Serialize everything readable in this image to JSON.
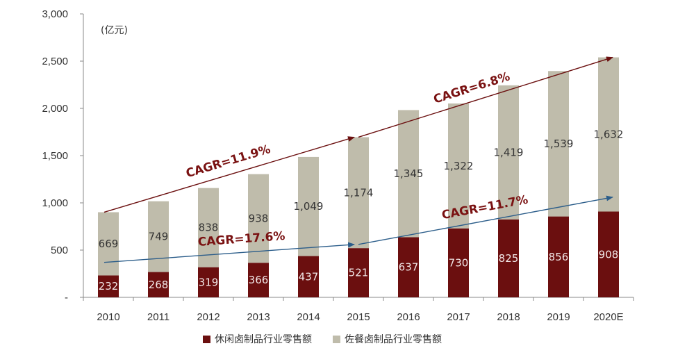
{
  "chart_data": {
    "type": "bar",
    "stacked": true,
    "unit_label": "(亿元)",
    "categories": [
      "2010",
      "2011",
      "2012",
      "2013",
      "2014",
      "2015",
      "2016",
      "2017",
      "2018",
      "2019",
      "2020E"
    ],
    "series": [
      {
        "name": "休闲卤制品行业零售额",
        "color": "#6b0f0f",
        "values": [
          232,
          268,
          319,
          366,
          437,
          521,
          637,
          730,
          825,
          856,
          908
        ]
      },
      {
        "name": "佐餐卤制品行业零售额",
        "color": "#bfbcab",
        "values": [
          669,
          749,
          838,
          938,
          1049,
          1174,
          1345,
          1322,
          1419,
          1539,
          1632
        ]
      }
    ],
    "value_labels": {
      "series0": [
        "232",
        "268",
        "319",
        "366",
        "437",
        "521",
        "637",
        "730",
        "825",
        "856",
        "908"
      ],
      "series1": [
        "669",
        "749",
        "838",
        "938",
        "1,049",
        "1,174",
        "1,345",
        "1,322",
        "1,419",
        "1,539",
        "1,632"
      ]
    },
    "y_ticks": [
      {
        "value": 0,
        "label": "-"
      },
      {
        "value": 500,
        "label": "500"
      },
      {
        "value": 1000,
        "label": "1,000"
      },
      {
        "value": 1500,
        "label": "1,500"
      },
      {
        "value": 2000,
        "label": "2,000"
      },
      {
        "value": 2500,
        "label": "2,500"
      },
      {
        "value": 3000,
        "label": "3,000"
      }
    ],
    "ylim": [
      0,
      3000
    ],
    "annotations": [
      {
        "text": "CAGR=11.9%",
        "color": "#7a1212",
        "from_category": "2010",
        "to_category": "2015",
        "from_value": 901,
        "to_value": 1695
      },
      {
        "text": "CAGR=6.8%",
        "color": "#7a1212",
        "from_category": "2015",
        "to_category": "2020E",
        "from_value": 1695,
        "to_value": 2540
      },
      {
        "text": "CAGR=17.6%",
        "color": "#7a1212",
        "from_category": "2010",
        "to_category": "2015",
        "from_value": 370,
        "to_value": 560
      },
      {
        "text": "CAGR=11.7%",
        "color": "#7a1212",
        "from_category": "2015",
        "to_category": "2020E",
        "from_value": 560,
        "to_value": 1060
      }
    ],
    "legend_position": "bottom"
  }
}
